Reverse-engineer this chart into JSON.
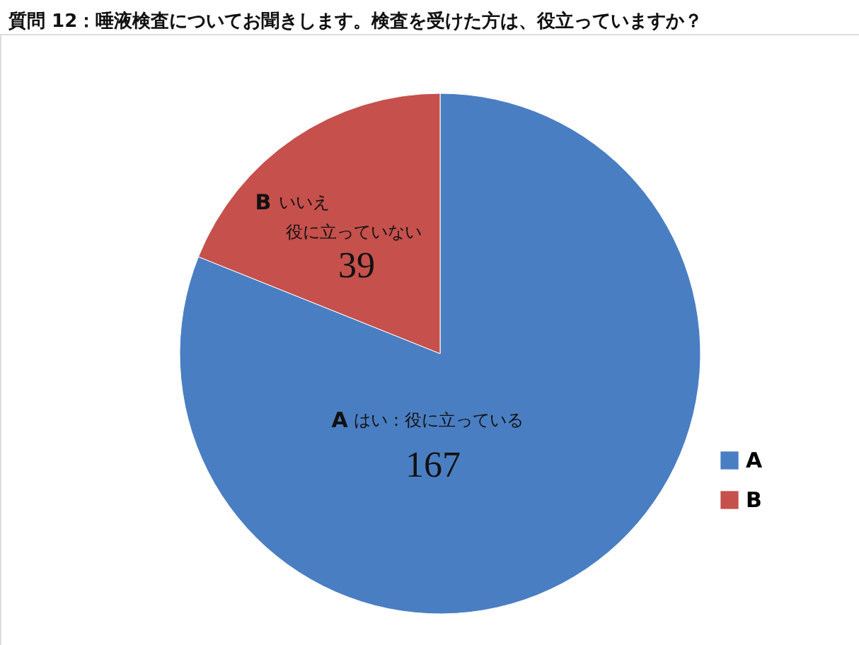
{
  "chart_data": {
    "type": "pie",
    "title": "質問 12：唾液検査についてお聞きします。検査を受けた方は、役立っていますか？",
    "categories": [
      "A",
      "B"
    ],
    "values": [
      167,
      39
    ],
    "colors": [
      "#4a7ec2",
      "#c5504c"
    ],
    "data_labels": true,
    "annotations": [
      "はい：役に立っている",
      "いいえ",
      "役に立っていない"
    ],
    "legend": "right"
  }
}
